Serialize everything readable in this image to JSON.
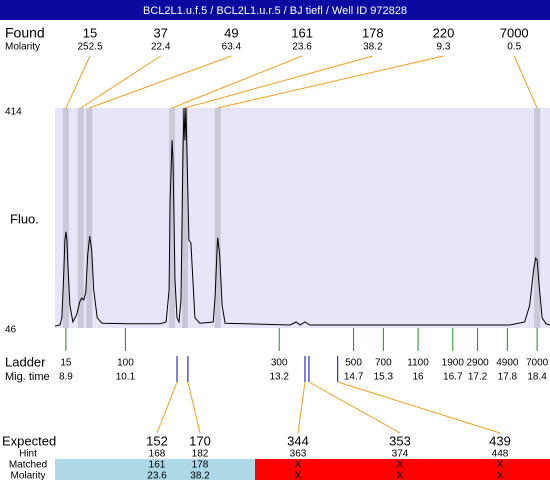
{
  "header": {
    "title": "BCL2L1.u.f.5 / BCL2L1.u.r.5 / BJ tiefl / Well ID 972828"
  },
  "chart_data": {
    "type": "electropherogram",
    "y_label": "Fluo.",
    "ylim": [
      46,
      414
    ],
    "yticks": [
      46,
      414
    ],
    "xlim": [
      8.68,
      18.66
    ],
    "trace_color": "#000000",
    "plot_color": "#e6e6f8",
    "band_color": "#c8c8d6",
    "found": {
      "label": "Found",
      "molarity_label": "Molarity",
      "sizes": [
        15,
        37,
        49,
        161,
        178,
        220,
        7000
      ],
      "molarity": [
        252.5,
        22.4,
        63.4,
        23.6,
        38.2,
        9.3,
        0.5
      ],
      "peak_times": [
        8.9,
        9.2,
        9.37,
        11.04,
        11.3,
        11.96,
        18.4
      ]
    },
    "trace": {
      "x": [
        8.68,
        8.78,
        8.82,
        8.86,
        8.88,
        8.9,
        8.92,
        8.94,
        8.98,
        9.04,
        9.12,
        9.18,
        9.22,
        9.26,
        9.3,
        9.34,
        9.38,
        9.42,
        9.46,
        9.53,
        9.63,
        10.19,
        10.8,
        10.92,
        10.98,
        11.0,
        11.04,
        11.06,
        11.1,
        11.14,
        11.18,
        11.22,
        11.26,
        11.28,
        11.3,
        11.32,
        11.34,
        11.38,
        11.42,
        11.46,
        11.5,
        11.6,
        11.87,
        11.91,
        11.95,
        11.96,
        12.0,
        12.05,
        12.11,
        13.42,
        13.54,
        13.62,
        13.72,
        13.82,
        15.63,
        17.85,
        18.15,
        18.25,
        18.33,
        18.37,
        18.4,
        18.44,
        18.5,
        18.58,
        18.66
      ],
      "y": [
        49,
        51,
        63,
        143,
        193,
        207,
        193,
        151,
        84,
        56,
        69,
        90,
        96,
        93,
        106,
        168,
        200,
        176,
        110,
        63,
        54,
        53,
        53,
        56,
        110,
        260,
        360,
        327,
        126,
        63,
        56,
        93,
        343,
        414,
        360,
        414,
        343,
        193,
        188,
        126,
        63,
        54,
        56,
        101,
        184,
        197,
        168,
        84,
        54,
        51,
        56,
        51,
        56,
        51,
        51,
        51,
        56,
        84,
        143,
        163,
        160,
        118,
        63,
        53,
        51
      ]
    },
    "ladder": {
      "label": "Ladder",
      "time_label": "Mig. time",
      "sizes": [
        15,
        100,
        300,
        500,
        700,
        1100,
        1900,
        2900,
        4900,
        7000
      ],
      "times": [
        8.9,
        10.1,
        13.2,
        14.7,
        15.3,
        16,
        16.7,
        17.2,
        17.8,
        18.4
      ]
    },
    "expected": {
      "label": "Expected",
      "hint_label": "Hint",
      "matched_label": "Matched",
      "molarity_label": "Molarity",
      "sizes": [
        152,
        170,
        344,
        353,
        439
      ],
      "hints": [
        168,
        182,
        363,
        374,
        448
      ],
      "matched": [
        161,
        178,
        "X",
        "X",
        "X"
      ],
      "molarity": [
        23.6,
        38.2,
        "X",
        "X",
        "X"
      ],
      "times": [
        11.14,
        11.36,
        13.72,
        13.8,
        14.38
      ]
    }
  }
}
